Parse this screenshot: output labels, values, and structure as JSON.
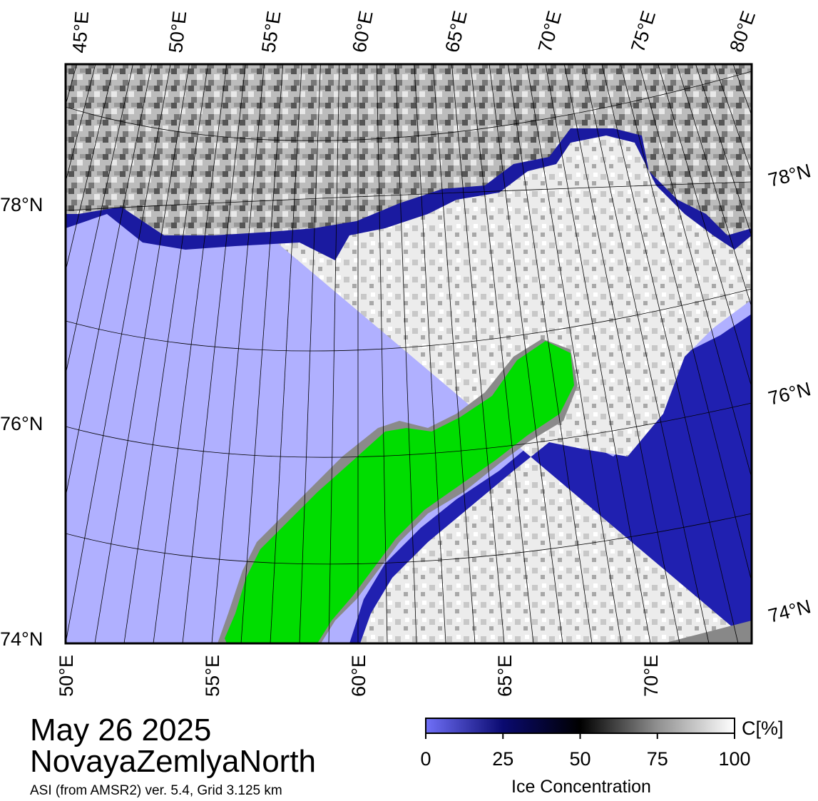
{
  "map": {
    "top_labels": [
      "45°E",
      "50°E",
      "55°E",
      "60°E",
      "65°E",
      "70°E",
      "75°E",
      "80°E"
    ],
    "bottom_labels": [
      "50°E",
      "55°E",
      "60°E",
      "65°E",
      "70°E"
    ],
    "left_labels": [
      "78°N",
      "76°N",
      "74°N"
    ],
    "right_labels": [
      "78°N",
      "76°N",
      "74°N"
    ]
  },
  "caption": {
    "date": "May 26 2025",
    "region": "NovayaZemlyaNorth",
    "source": "ASI (from AMSR2) ver. 5.4,  Grid 3.125 km"
  },
  "colorbar": {
    "unit": "C[%]",
    "label": "Ice Concentration",
    "ticks": [
      0,
      25,
      50,
      75,
      100
    ]
  }
}
